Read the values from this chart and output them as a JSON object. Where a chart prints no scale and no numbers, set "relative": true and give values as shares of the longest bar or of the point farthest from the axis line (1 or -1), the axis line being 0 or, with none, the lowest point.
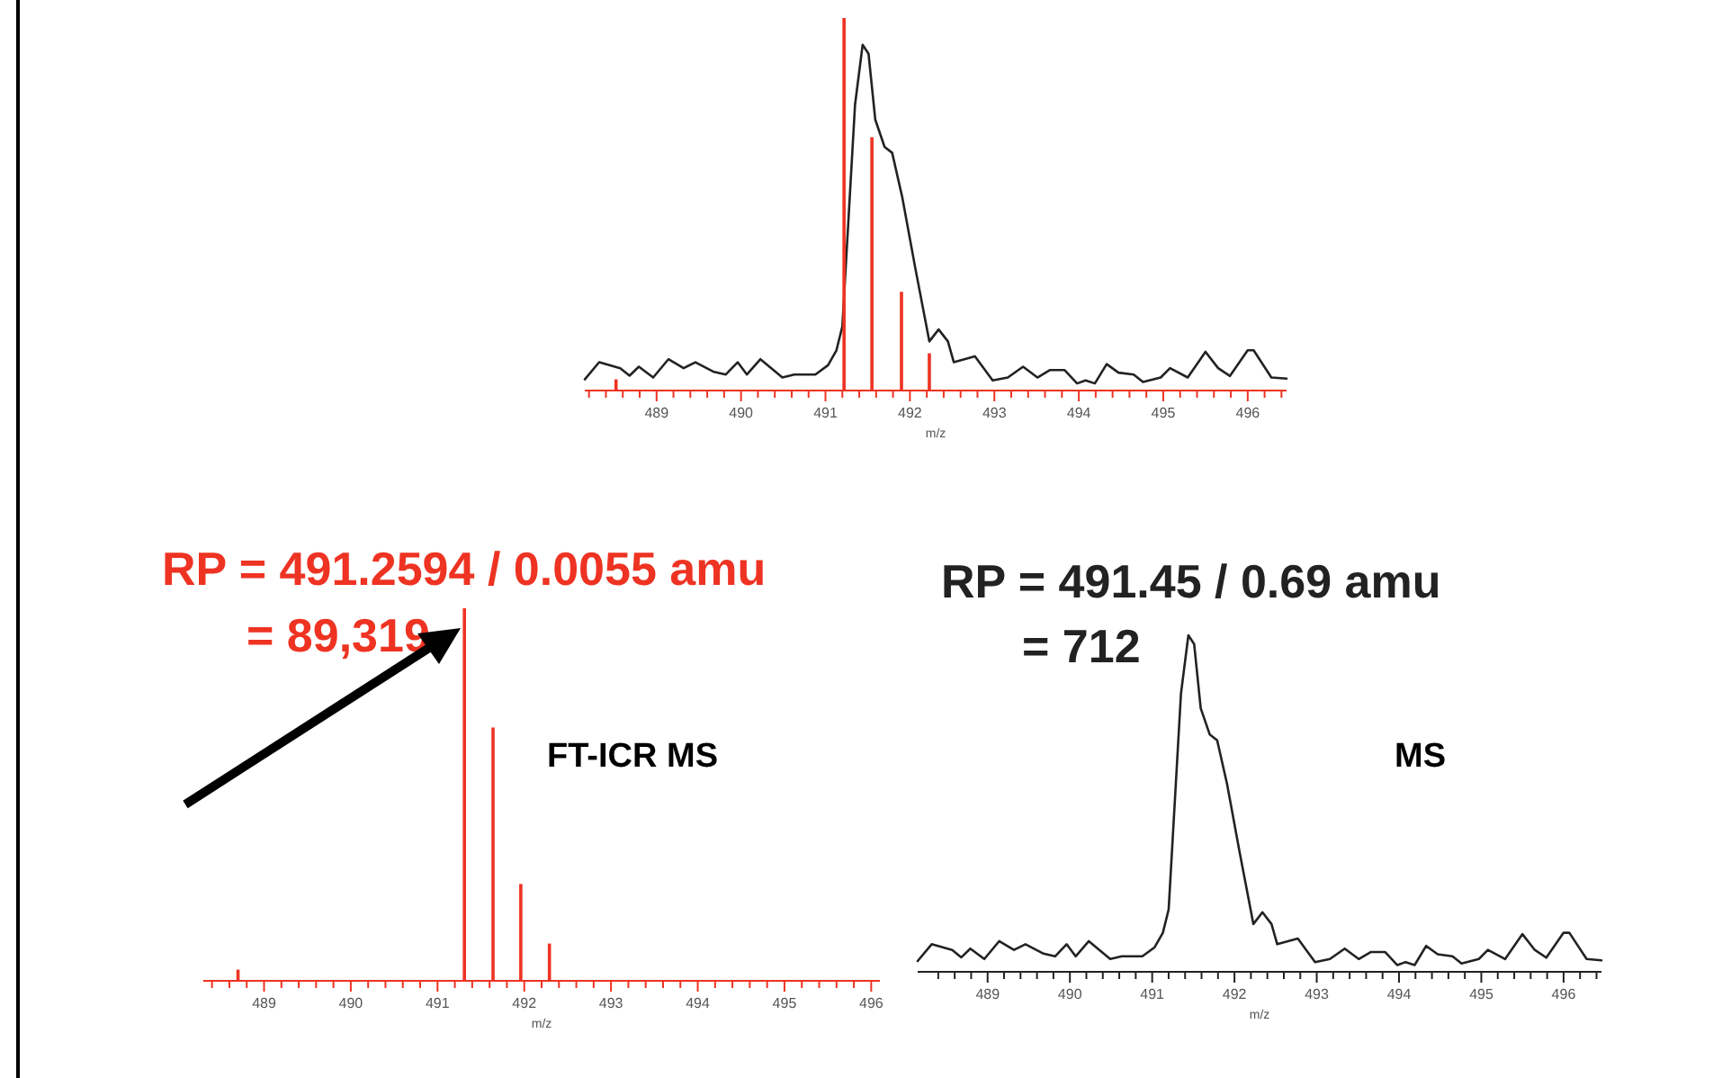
{
  "chart_data": [
    {
      "type": "line",
      "relative": true,
      "xlabel": "m/z",
      "xlim": [
        488.15,
        496.46
      ],
      "xticks": [
        {
          "value": 488.2,
          "label": null
        },
        {
          "value": 488.4,
          "label": null
        },
        {
          "value": 488.6,
          "label": null
        },
        {
          "value": 488.8,
          "label": null
        },
        489,
        {
          "value": 489.2,
          "label": null
        },
        {
          "value": 489.4,
          "label": null
        },
        {
          "value": 489.6,
          "label": null
        },
        {
          "value": 489.8,
          "label": null
        },
        490,
        {
          "value": 490.2,
          "label": null
        },
        {
          "value": 490.4,
          "label": null
        },
        {
          "value": 490.6,
          "label": null
        },
        {
          "value": 490.8,
          "label": null
        },
        491,
        {
          "value": 491.2,
          "label": null
        },
        {
          "value": 491.4,
          "label": null
        },
        {
          "value": 491.6,
          "label": null
        },
        {
          "value": 491.8,
          "label": null
        },
        492,
        {
          "value": 492.2,
          "label": null
        },
        {
          "value": 492.4,
          "label": null
        },
        {
          "value": 492.6,
          "label": null
        },
        {
          "value": 492.8,
          "label": null
        },
        493,
        {
          "value": 493.2,
          "label": null
        },
        {
          "value": 493.4,
          "label": null
        },
        {
          "value": 493.6,
          "label": null
        },
        {
          "value": 493.8,
          "label": null
        },
        494,
        {
          "value": 494.2,
          "label": null
        },
        {
          "value": 494.4,
          "label": null
        },
        {
          "value": 494.6,
          "label": null
        },
        {
          "value": 494.8,
          "label": null
        },
        495,
        {
          "value": 495.2,
          "label": null
        },
        {
          "value": 495.4,
          "label": null
        },
        {
          "value": 495.6,
          "label": null
        },
        {
          "value": 495.8,
          "label": null
        },
        496,
        {
          "value": 496.2,
          "label": null
        },
        {
          "value": 496.4,
          "label": null
        }
      ],
      "series": [
        {
          "color": "#222222",
          "x": [
            488.15,
            488.32,
            488.57,
            488.68,
            488.79,
            488.96,
            489.14,
            489.32,
            489.46,
            489.68,
            489.82,
            489.96,
            490.07,
            490.23,
            490.49,
            490.63,
            490.88,
            491.03,
            491.13,
            491.2,
            491.35,
            491.44,
            491.51,
            491.59,
            491.7,
            491.79,
            491.91,
            492.06,
            492.23,
            492.34,
            492.45,
            492.52,
            492.77,
            492.98,
            493.16,
            493.34,
            493.51,
            493.66,
            493.83,
            493.98,
            494.08,
            494.19,
            494.33,
            494.47,
            494.65,
            494.76,
            494.97,
            495.08,
            495.29,
            495.5,
            495.65,
            495.79,
            496.0,
            496.07,
            496.28,
            496.46
          ],
          "values": [
            0.03,
            0.076,
            0.06,
            0.04,
            0.064,
            0.035,
            0.084,
            0.06,
            0.076,
            0.05,
            0.043,
            0.076,
            0.043,
            0.084,
            0.035,
            0.043,
            0.043,
            0.068,
            0.108,
            0.172,
            0.767,
            0.928,
            0.904,
            0.727,
            0.654,
            0.638,
            0.518,
            0.333,
            0.132,
            0.164,
            0.132,
            0.076,
            0.092,
            0.027,
            0.035,
            0.064,
            0.035,
            0.055,
            0.055,
            0.019,
            0.027,
            0.019,
            0.071,
            0.048,
            0.043,
            0.023,
            0.035,
            0.06,
            0.035,
            0.104,
            0.06,
            0.039,
            0.108,
            0.108,
            0.035,
            0.032
          ]
        },
        {
          "type": "bar",
          "color": "#ee3322",
          "x": [
            488.52,
            491.22,
            491.55,
            491.9,
            492.23
          ],
          "values": [
            0.03,
            1,
            0.68,
            0.265,
            0.1
          ]
        }
      ]
    },
    {
      "type": "bar",
      "relative": true,
      "xlabel": "m/z",
      "xlim": [
        488.3,
        496.1
      ],
      "xticks": [
        {
          "value": 488.4,
          "label": null
        },
        {
          "value": 488.6,
          "label": null
        },
        {
          "value": 488.8,
          "label": null
        },
        489,
        {
          "value": 489.2,
          "label": null
        },
        {
          "value": 489.4,
          "label": null
        },
        {
          "value": 489.6,
          "label": null
        },
        {
          "value": 489.8,
          "label": null
        },
        490,
        {
          "value": 490.2,
          "label": null
        },
        {
          "value": 490.4,
          "label": null
        },
        {
          "value": 490.6,
          "label": null
        },
        {
          "value": 490.8,
          "label": null
        },
        491,
        {
          "value": 491.2,
          "label": null
        },
        {
          "value": 491.4,
          "label": null
        },
        {
          "value": 491.6,
          "label": null
        },
        {
          "value": 491.8,
          "label": null
        },
        492,
        {
          "value": 492.2,
          "label": null
        },
        {
          "value": 492.4,
          "label": null
        },
        {
          "value": 492.6,
          "label": null
        },
        {
          "value": 492.8,
          "label": null
        },
        493,
        {
          "value": 493.2,
          "label": null
        },
        {
          "value": 493.4,
          "label": null
        },
        {
          "value": 493.6,
          "label": null
        },
        {
          "value": 493.8,
          "label": null
        },
        494,
        {
          "value": 494.2,
          "label": null
        },
        {
          "value": 494.4,
          "label": null
        },
        {
          "value": 494.6,
          "label": null
        },
        {
          "value": 494.8,
          "label": null
        },
        495,
        {
          "value": 495.2,
          "label": null
        },
        {
          "value": 495.4,
          "label": null
        },
        {
          "value": 495.6,
          "label": null
        },
        {
          "value": 495.8,
          "label": null
        },
        496
      ],
      "series": [
        {
          "color": "#ee3322",
          "x": [
            488.7,
            491.31,
            491.64,
            491.96,
            492.29
          ],
          "values": [
            0.03,
            1,
            0.68,
            0.26,
            0.1
          ]
        }
      ],
      "annotations": [
        "RP = 491.2594 / 0.0055 amu",
        "= 89,319",
        "FT-ICR MS"
      ]
    },
    {
      "type": "line",
      "relative": true,
      "xlabel": "m/z",
      "xlim": [
        488.15,
        496.46
      ],
      "xticks": [
        {
          "value": 488.4,
          "label": null
        },
        {
          "value": 488.6,
          "label": null
        },
        {
          "value": 488.8,
          "label": null
        },
        489,
        {
          "value": 489.2,
          "label": null
        },
        {
          "value": 489.4,
          "label": null
        },
        {
          "value": 489.6,
          "label": null
        },
        {
          "value": 489.8,
          "label": null
        },
        490,
        {
          "value": 490.2,
          "label": null
        },
        {
          "value": 490.4,
          "label": null
        },
        {
          "value": 490.6,
          "label": null
        },
        {
          "value": 490.8,
          "label": null
        },
        491,
        {
          "value": 491.2,
          "label": null
        },
        {
          "value": 491.4,
          "label": null
        },
        {
          "value": 491.6,
          "label": null
        },
        {
          "value": 491.8,
          "label": null
        },
        492,
        {
          "value": 492.2,
          "label": null
        },
        {
          "value": 492.4,
          "label": null
        },
        {
          "value": 492.6,
          "label": null
        },
        {
          "value": 492.8,
          "label": null
        },
        493,
        {
          "value": 493.2,
          "label": null
        },
        {
          "value": 493.4,
          "label": null
        },
        {
          "value": 493.6,
          "label": null
        },
        {
          "value": 493.8,
          "label": null
        },
        494,
        {
          "value": 494.2,
          "label": null
        },
        {
          "value": 494.4,
          "label": null
        },
        {
          "value": 494.6,
          "label": null
        },
        {
          "value": 494.8,
          "label": null
        },
        495,
        {
          "value": 495.2,
          "label": null
        },
        {
          "value": 495.4,
          "label": null
        },
        {
          "value": 495.6,
          "label": null
        },
        {
          "value": 495.8,
          "label": null
        },
        496,
        {
          "value": 496.2,
          "label": null
        },
        {
          "value": 496.4,
          "label": null
        }
      ],
      "series": [
        {
          "color": "#222222",
          "x": [
            488.15,
            488.32,
            488.57,
            488.68,
            488.79,
            488.96,
            489.14,
            489.32,
            489.46,
            489.68,
            489.82,
            489.96,
            490.07,
            490.23,
            490.49,
            490.63,
            490.88,
            491.03,
            491.13,
            491.2,
            491.35,
            491.44,
            491.51,
            491.59,
            491.7,
            491.79,
            491.91,
            492.06,
            492.23,
            492.34,
            492.45,
            492.52,
            492.77,
            492.98,
            493.16,
            493.34,
            493.51,
            493.66,
            493.83,
            493.98,
            494.08,
            494.19,
            494.33,
            494.47,
            494.65,
            494.76,
            494.97,
            495.08,
            495.29,
            495.5,
            495.65,
            495.79,
            496.0,
            496.07,
            496.28,
            496.46
          ],
          "values": [
            0.032,
            0.082,
            0.065,
            0.043,
            0.069,
            0.038,
            0.091,
            0.065,
            0.082,
            0.054,
            0.046,
            0.082,
            0.046,
            0.091,
            0.038,
            0.046,
            0.046,
            0.073,
            0.116,
            0.185,
            0.827,
            1,
            0.974,
            0.783,
            0.705,
            0.688,
            0.558,
            0.359,
            0.142,
            0.177,
            0.142,
            0.082,
            0.099,
            0.029,
            0.038,
            0.069,
            0.038,
            0.059,
            0.059,
            0.02,
            0.029,
            0.02,
            0.077,
            0.052,
            0.046,
            0.025,
            0.038,
            0.065,
            0.038,
            0.112,
            0.065,
            0.042,
            0.116,
            0.116,
            0.038,
            0.034
          ]
        }
      ],
      "annotations": [
        "RP = 491.45 / 0.69 amu",
        "= 712",
        "MS"
      ]
    }
  ]
}
